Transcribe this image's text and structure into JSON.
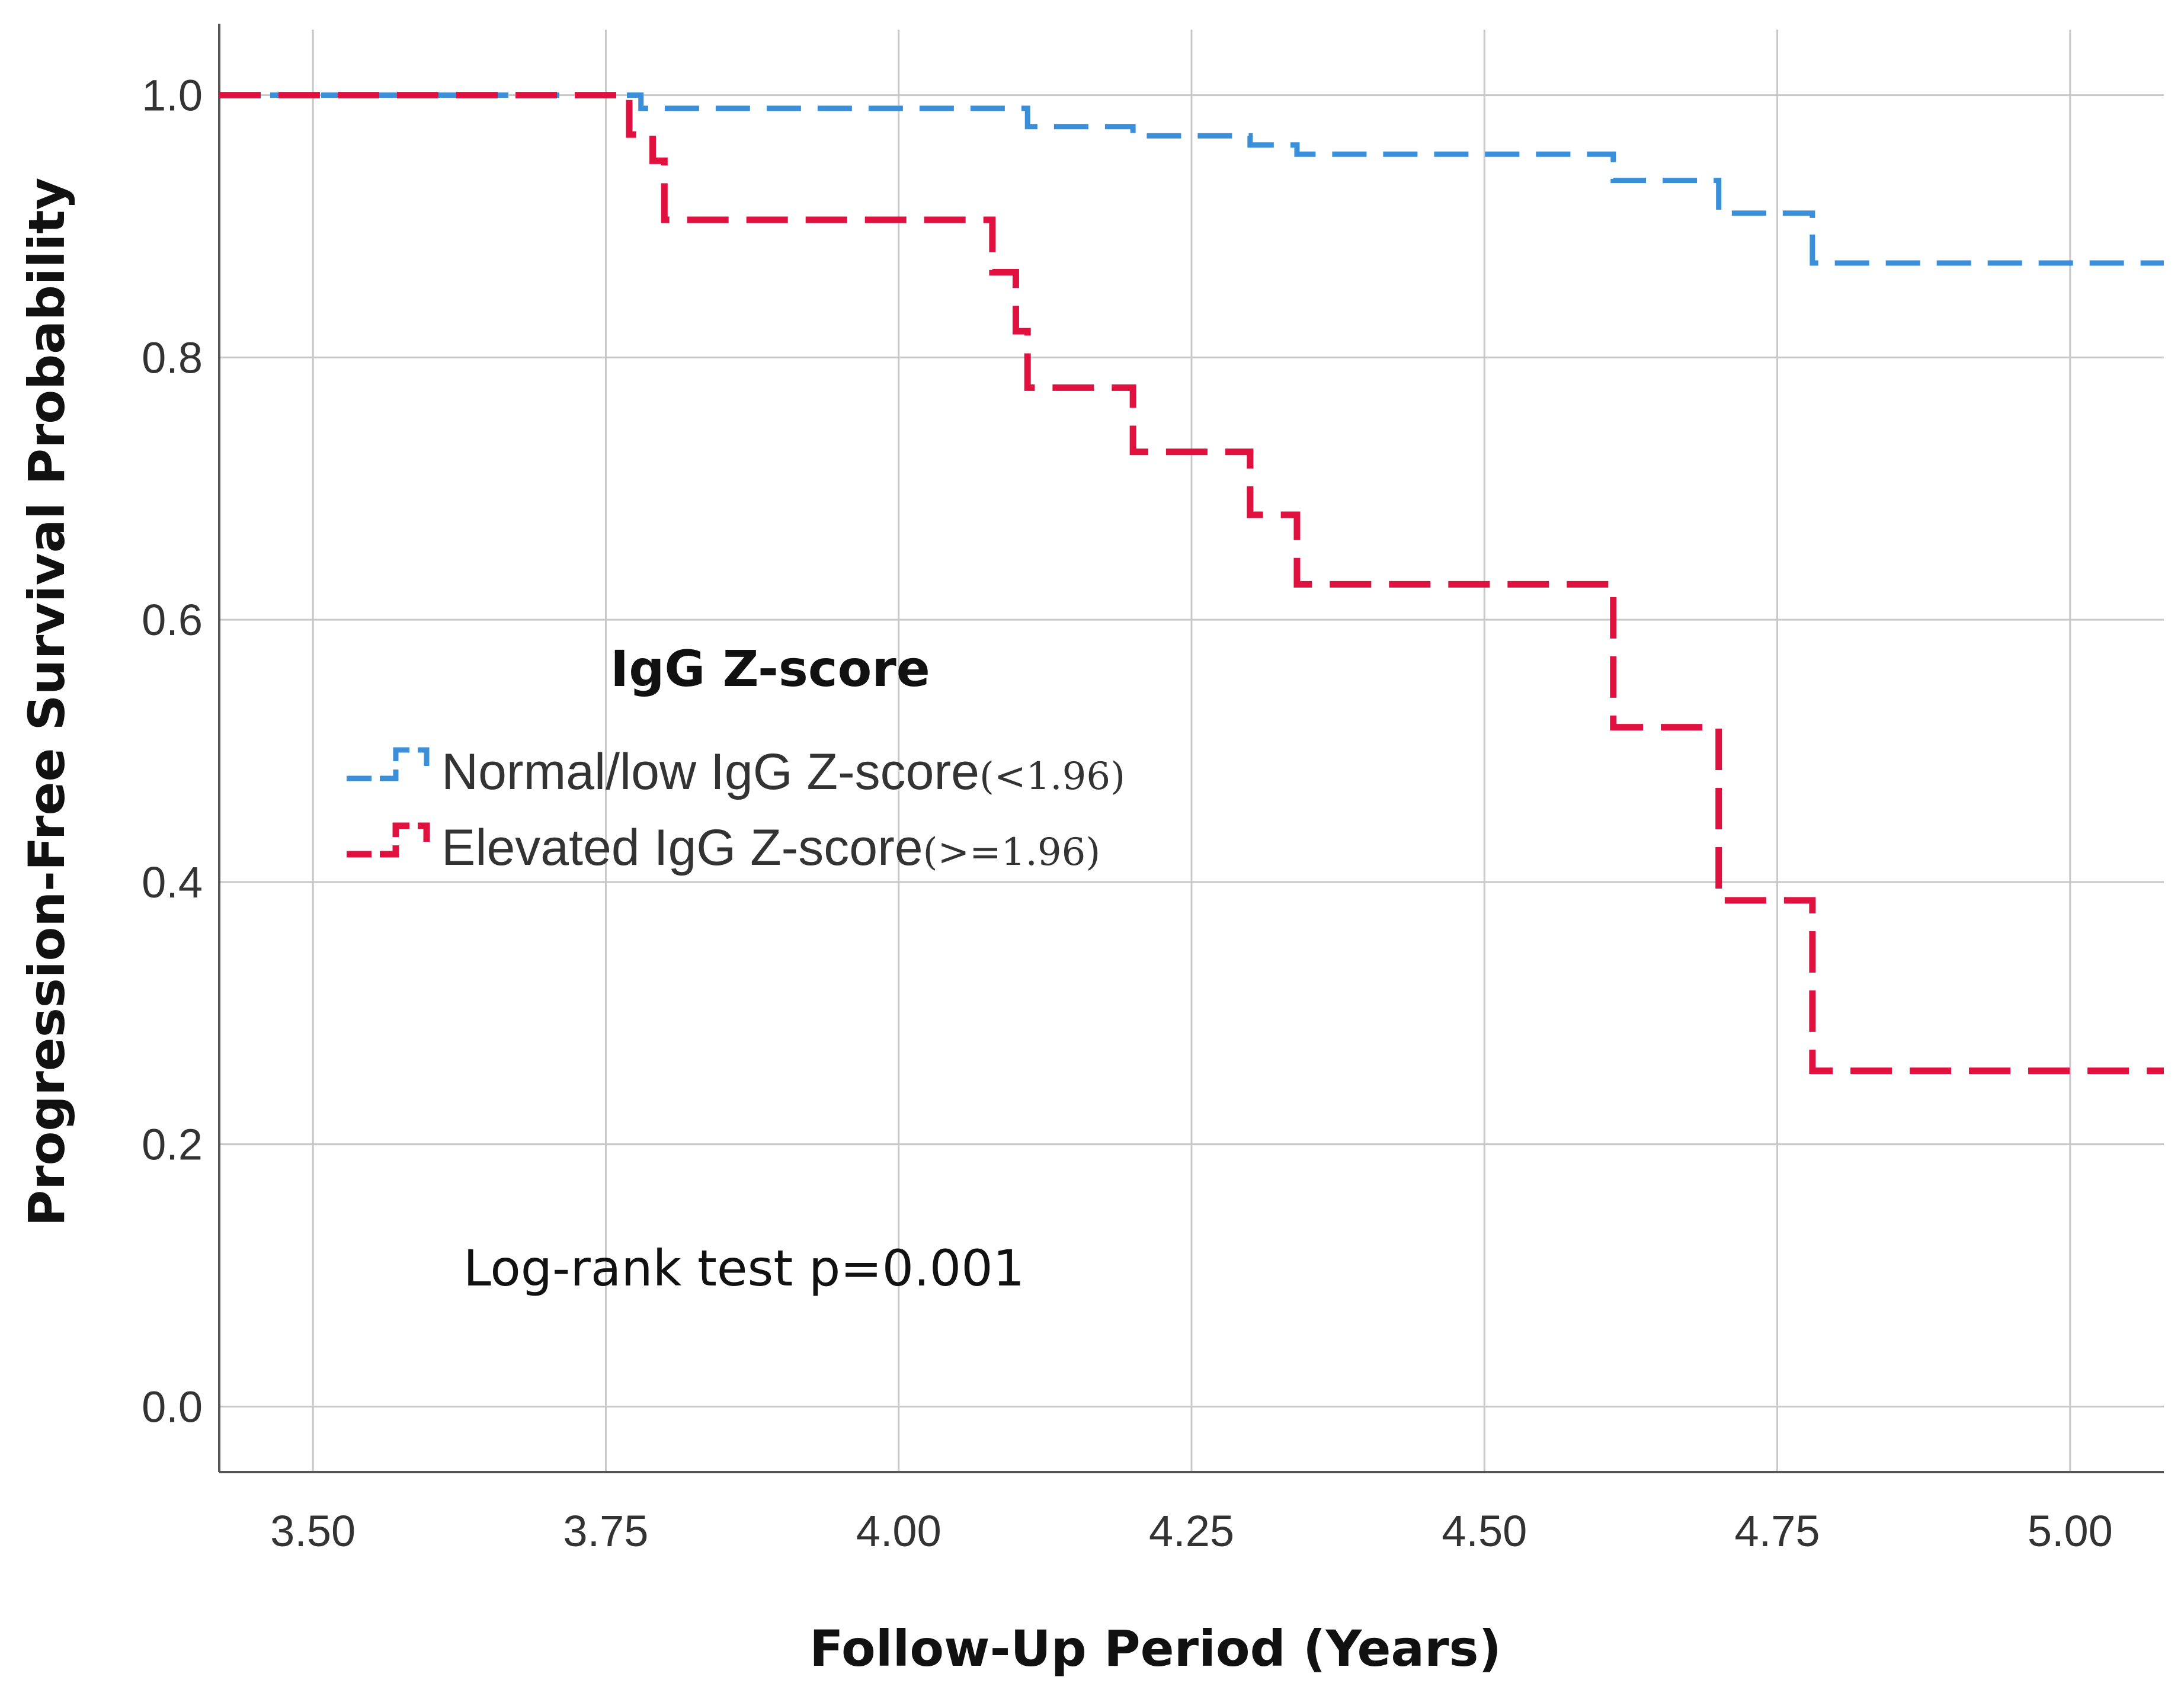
{
  "chart_data": {
    "type": "line",
    "subtype": "kaplan-meier step",
    "xlabel": "Follow-Up Period (Years)",
    "ylabel": "Progression-Free Survival Probability",
    "xlim": [
      3.42,
      5.08
    ],
    "ylim": [
      -0.05,
      1.05
    ],
    "x_ticks": [
      "3.50",
      "3.75",
      "4.00",
      "4.25",
      "4.50",
      "4.75",
      "5.00"
    ],
    "y_ticks": [
      "0.0",
      "0.2",
      "0.4",
      "0.6",
      "0.8",
      "1.0"
    ],
    "grid": true,
    "legend": {
      "title": "IgG Z-score",
      "position": "middle-left"
    },
    "annotation": "Log-rank test p=0.001",
    "series": [
      {
        "name": "Normal/low IgG Z-score",
        "name_suffix": "(<1.96)",
        "color": "#3B8FD9",
        "x": [
          3.42,
          3.76,
          3.78,
          4.08,
          4.11,
          4.2,
          4.3,
          4.34,
          4.61,
          4.7,
          4.78,
          5.08
        ],
        "y": [
          1.0,
          1.0,
          0.99,
          0.99,
          0.976,
          0.969,
          0.962,
          0.955,
          0.935,
          0.91,
          0.872,
          0.872
        ]
      },
      {
        "name": "Elevated IgG Z-score",
        "name_suffix": "(>=1.96)",
        "color": "#E0103F",
        "x": [
          3.42,
          3.77,
          3.79,
          3.8,
          4.08,
          4.1,
          4.11,
          4.2,
          4.3,
          4.34,
          4.61,
          4.7,
          4.78,
          5.08
        ],
        "y": [
          1.0,
          0.97,
          0.95,
          0.905,
          0.865,
          0.82,
          0.777,
          0.728,
          0.68,
          0.627,
          0.518,
          0.386,
          0.256,
          0.256
        ]
      }
    ]
  }
}
